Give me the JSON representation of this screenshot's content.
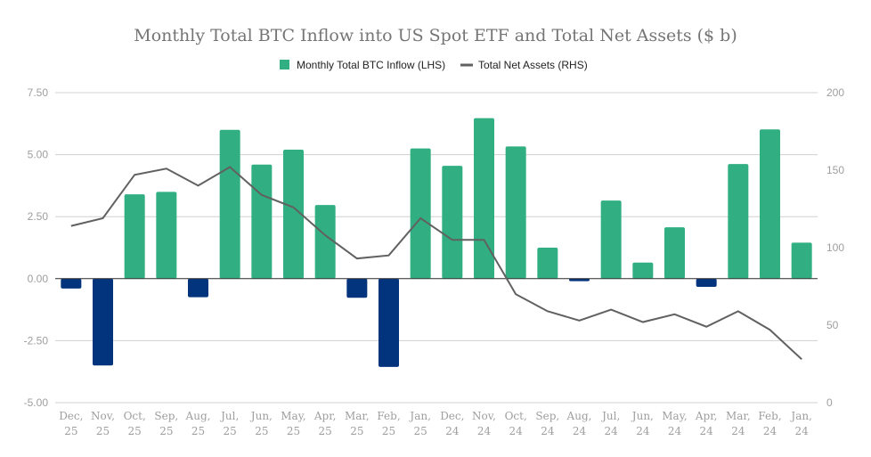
{
  "chart_data": {
    "type": "bar",
    "title": "Monthly Total BTC Inflow into US Spot ETF and Total Net Assets ($ b)",
    "legend_position": "top",
    "categories": [
      [
        "Dec,",
        "25"
      ],
      [
        "Nov,",
        "25"
      ],
      [
        "Oct,",
        "25"
      ],
      [
        "Sep,",
        "25"
      ],
      [
        "Aug,",
        "25"
      ],
      [
        "Jul,",
        "25"
      ],
      [
        "Jun,",
        "25"
      ],
      [
        "May,",
        "25"
      ],
      [
        "Apr,",
        "25"
      ],
      [
        "Mar,",
        "25"
      ],
      [
        "Feb,",
        "25"
      ],
      [
        "Jan,",
        "25"
      ],
      [
        "Dec,",
        "24"
      ],
      [
        "Nov,",
        "24"
      ],
      [
        "Oct,",
        "24"
      ],
      [
        "Sep,",
        "24"
      ],
      [
        "Aug,",
        "24"
      ],
      [
        "Jul,",
        "24"
      ],
      [
        "Jun,",
        "24"
      ],
      [
        "May,",
        "24"
      ],
      [
        "Apr,",
        "24"
      ],
      [
        "Mar,",
        "24"
      ],
      [
        "Feb,",
        "24"
      ],
      [
        "Jan,",
        "24"
      ]
    ],
    "series": [
      {
        "name": "Monthly Total BTC Inflow (LHS)",
        "type": "bar",
        "axis": "left",
        "values": [
          -0.4,
          -3.5,
          3.4,
          3.5,
          -0.75,
          6.0,
          4.6,
          5.2,
          2.97,
          -0.77,
          -3.56,
          5.25,
          4.55,
          6.47,
          5.33,
          1.25,
          -0.1,
          3.15,
          0.65,
          2.07,
          -0.33,
          4.62,
          6.02,
          1.45
        ],
        "color_positive": "#31af82",
        "color_negative": "#02337d"
      },
      {
        "name": "Total Net Assets (RHS)",
        "type": "line",
        "axis": "right",
        "values": [
          114,
          119,
          147,
          151,
          140,
          152,
          134,
          126,
          108,
          93,
          95,
          119,
          105,
          105,
          70,
          59,
          53,
          60,
          52,
          57,
          49,
          59,
          47,
          28
        ],
        "color": "#616161"
      }
    ],
    "left_axis": {
      "range": [
        -5,
        7.5
      ],
      "ticks": [
        "-5.00",
        "-2.50",
        "0.00",
        "2.50",
        "5.00",
        "7.50"
      ]
    },
    "right_axis": {
      "range": [
        0,
        200
      ],
      "ticks": [
        "0",
        "50",
        "100",
        "150",
        "200"
      ]
    },
    "grid": true
  }
}
